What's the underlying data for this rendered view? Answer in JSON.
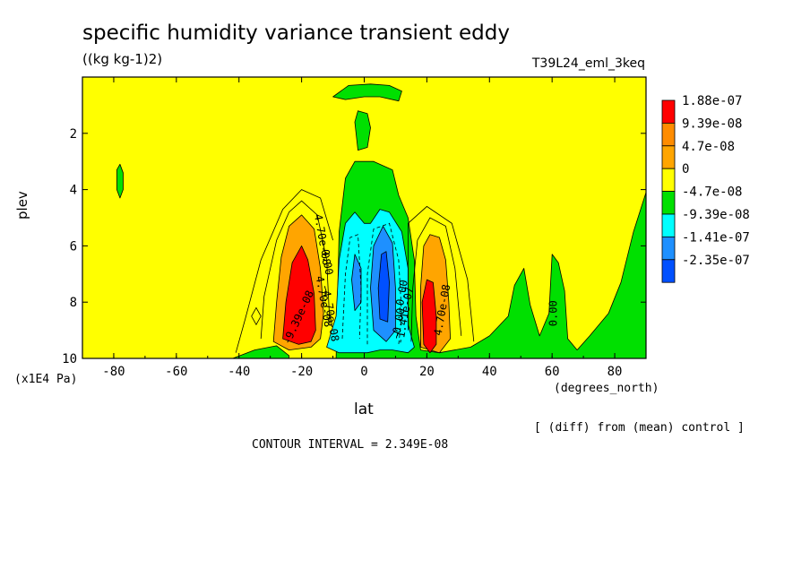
{
  "chart_data": {
    "type": "heatmap",
    "title": "specific humidity variance transient eddy",
    "units": "((kg kg-1)2)",
    "experiment": "T39L24_eml_3keq",
    "xlabel": "lat",
    "xunit": "(degrees_north)",
    "ylabel": "plev",
    "yunit": "(x1E4 Pa)",
    "xlim": [
      -90,
      90
    ],
    "ylim": [
      10,
      0
    ],
    "xticks": [
      -80,
      -60,
      -40,
      -20,
      0,
      20,
      40,
      60,
      80
    ],
    "xtick_labels": [
      "-80",
      "-60",
      "-40",
      "-20",
      "0",
      "20",
      "40",
      "60",
      "80"
    ],
    "yticks": [
      2,
      4,
      6,
      8,
      10
    ],
    "ytick_labels": [
      "2",
      "4",
      "6",
      "8",
      "10"
    ],
    "legend": {
      "placement": "right",
      "entries": [
        {
          "label": "1.88e-07",
          "color": "#ff0000"
        },
        {
          "label": "9.39e-08",
          "color": "#ff8c00"
        },
        {
          "label": "4.7e-08",
          "color": "#ffa500"
        },
        {
          "label": "0",
          "color": "#ffff00"
        },
        {
          "label": "-4.7e-08",
          "color": "#00e000"
        },
        {
          "label": "-9.39e-08",
          "color": "#00ffff"
        },
        {
          "label": "-1.41e-07",
          "color": "#1e90ff"
        },
        {
          "label": "-2.35e-07",
          "color": "#0050ff"
        }
      ]
    },
    "background_color": "#ffff00",
    "regions": [
      {
        "name": "green-tropical-negative",
        "level": "-4.7e-08",
        "color": "#00e000",
        "points": [
          [
            -9,
            10
          ],
          [
            -8,
            5.5
          ],
          [
            -6,
            3.6
          ],
          [
            -3,
            3.0
          ],
          [
            3,
            3.0
          ],
          [
            9,
            3.3
          ],
          [
            11,
            4.2
          ],
          [
            14,
            5
          ],
          [
            16,
            6.5
          ],
          [
            16.5,
            8.5
          ],
          [
            18,
            9.7
          ],
          [
            24,
            9.8
          ],
          [
            34,
            9.6
          ],
          [
            40,
            9.2
          ],
          [
            46,
            8.5
          ],
          [
            48,
            7.4
          ],
          [
            51,
            6.8
          ],
          [
            53,
            8.1
          ],
          [
            56,
            9.2
          ],
          [
            59,
            8.4
          ],
          [
            60,
            6.3
          ],
          [
            62,
            6.6
          ],
          [
            64,
            7.6
          ],
          [
            65,
            9.3
          ],
          [
            68,
            9.7
          ],
          [
            72,
            9.2
          ],
          [
            78,
            8.4
          ],
          [
            82,
            7.3
          ],
          [
            86,
            5.5
          ],
          [
            90,
            4.1
          ],
          [
            90,
            10
          ]
        ]
      },
      {
        "name": "green-top-blob",
        "level": "-4.7e-08",
        "color": "#00e000",
        "points": [
          [
            -10,
            0.7
          ],
          [
            -5,
            0.3
          ],
          [
            2,
            0.25
          ],
          [
            8,
            0.3
          ],
          [
            12,
            0.5
          ],
          [
            11,
            0.85
          ],
          [
            5,
            0.7
          ],
          [
            0,
            0.7
          ],
          [
            -6,
            0.8
          ]
        ]
      },
      {
        "name": "green-upper-blob",
        "level": "-4.7e-08",
        "color": "#00e000",
        "points": [
          [
            -3,
            1.6
          ],
          [
            -2,
            1.2
          ],
          [
            1,
            1.3
          ],
          [
            2,
            1.8
          ],
          [
            1,
            2.5
          ],
          [
            -2,
            2.6
          ]
        ]
      },
      {
        "name": "green-west-blob",
        "level": "-4.7e-08",
        "color": "#00e000",
        "points": [
          [
            -79,
            4.0
          ],
          [
            -79,
            3.3
          ],
          [
            -78,
            3.1
          ],
          [
            -77,
            3.4
          ],
          [
            -77,
            4.0
          ],
          [
            -78,
            4.3
          ]
        ]
      },
      {
        "name": "green-west-tail",
        "level": "-4.7e-08",
        "color": "#00e000",
        "points": [
          [
            -42,
            10
          ],
          [
            -35,
            9.7
          ],
          [
            -28,
            9.55
          ],
          [
            -24,
            9.9
          ],
          [
            -24,
            10
          ]
        ]
      },
      {
        "name": "cyan-tropical",
        "level": "-9.39e-08",
        "color": "#00ffff",
        "points": [
          [
            -12,
            9.6
          ],
          [
            -9,
            8.5
          ],
          [
            -8,
            6.5
          ],
          [
            -6,
            5.2
          ],
          [
            -3,
            4.8
          ],
          [
            0,
            5.2
          ],
          [
            2,
            5.2
          ],
          [
            5,
            4.7
          ],
          [
            8,
            4.8
          ],
          [
            12,
            5.5
          ],
          [
            14,
            6.8
          ],
          [
            14,
            8.8
          ],
          [
            16,
            9.6
          ],
          [
            14,
            9.8
          ],
          [
            9,
            9.7
          ],
          [
            5,
            9.7
          ],
          [
            1,
            9.8
          ],
          [
            -3,
            9.8
          ],
          [
            -8,
            9.8
          ]
        ]
      },
      {
        "name": "blue-west-core",
        "level": "-1.41e-07",
        "color": "#1e90ff",
        "points": [
          [
            -3,
            8.3
          ],
          [
            -4,
            7.2
          ],
          [
            -3,
            6.3
          ],
          [
            -1,
            6.8
          ],
          [
            -1,
            8.0
          ]
        ]
      },
      {
        "name": "blue-east-core",
        "level": "-1.41e-07",
        "color": "#1e90ff",
        "points": [
          [
            3,
            9.0
          ],
          [
            2,
            7.5
          ],
          [
            3,
            6.0
          ],
          [
            6,
            5.3
          ],
          [
            9,
            5.9
          ],
          [
            10,
            7.5
          ],
          [
            10,
            9.0
          ],
          [
            7,
            9.4
          ]
        ]
      },
      {
        "name": "deep-blue-core",
        "level": "-2.35e-07",
        "color": "#0050ff",
        "points": [
          [
            5,
            8.6
          ],
          [
            4.5,
            7.5
          ],
          [
            5.5,
            6.3
          ],
          [
            7,
            6.2
          ],
          [
            8,
            7.3
          ],
          [
            7.5,
            8.7
          ]
        ]
      },
      {
        "name": "orange-west",
        "level": "4.7e-08",
        "color": "#ffa500",
        "points": [
          [
            -29,
            9.4
          ],
          [
            -28,
            8.0
          ],
          [
            -26.5,
            6.4
          ],
          [
            -24,
            5.3
          ],
          [
            -20,
            4.9
          ],
          [
            -16,
            5.4
          ],
          [
            -14,
            6.8
          ],
          [
            -13,
            8.4
          ],
          [
            -14,
            9.3
          ],
          [
            -17,
            9.6
          ],
          [
            -24,
            9.7
          ]
        ]
      },
      {
        "name": "red-west",
        "level": "1.88e-07",
        "color": "#ff0000",
        "points": [
          [
            -26,
            9.3
          ],
          [
            -25,
            8.0
          ],
          [
            -23,
            6.6
          ],
          [
            -20,
            6.0
          ],
          [
            -18,
            6.5
          ],
          [
            -16,
            7.7
          ],
          [
            -15.5,
            9.0
          ],
          [
            -17,
            9.4
          ],
          [
            -21,
            9.5
          ]
        ]
      },
      {
        "name": "orange-east",
        "level": "4.7e-08",
        "color": "#ffa500",
        "points": [
          [
            18,
            9.6
          ],
          [
            18,
            7.5
          ],
          [
            19,
            6.0
          ],
          [
            21,
            5.6
          ],
          [
            24,
            5.7
          ],
          [
            26,
            6.5
          ],
          [
            27,
            8.0
          ],
          [
            27.5,
            9.3
          ],
          [
            24,
            9.8
          ]
        ]
      },
      {
        "name": "red-east",
        "level": "1.88e-07",
        "color": "#ff0000",
        "points": [
          [
            19,
            9.5
          ],
          [
            18.5,
            8.0
          ],
          [
            20,
            7.2
          ],
          [
            22,
            7.3
          ],
          [
            23,
            8.5
          ],
          [
            23,
            9.5
          ],
          [
            21,
            9.8
          ]
        ]
      }
    ],
    "contour_interval": "2.349E-08",
    "contour_labels": [
      "-9.39e-08",
      "4.70e-08",
      "4.70e-08",
      "-4.70e-08",
      "4.70e-08",
      "0.00",
      "0.00",
      "-0.00",
      "-1.41e-07",
      "-0.00"
    ],
    "annotation_diff": "[ (diff) from (mean) control ]",
    "annotation_interval": "CONTOUR INTERVAL = 2.349E-08"
  }
}
